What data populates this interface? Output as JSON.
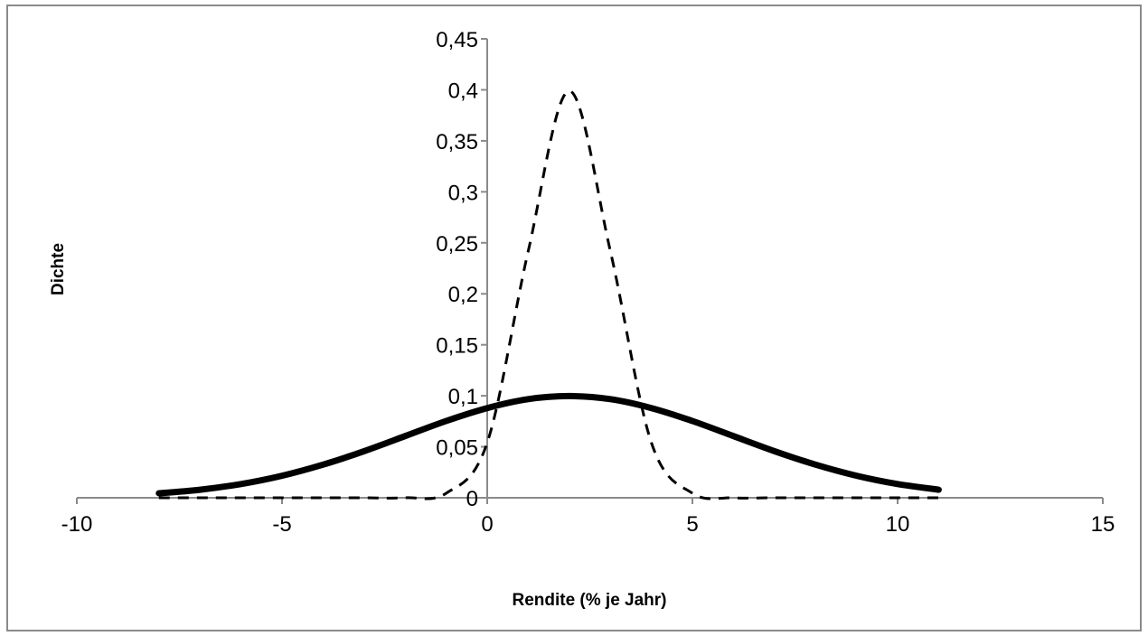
{
  "chart_data": {
    "type": "line",
    "title": "",
    "xlabel": "Rendite (%  je Jahr)",
    "ylabel": "Dichte",
    "xlim": [
      -10,
      15
    ],
    "ylim": [
      0,
      0.45
    ],
    "x_ticks": [
      -10,
      -5,
      0,
      5,
      10,
      15
    ],
    "x_tick_labels": [
      "-10",
      "-5",
      "0",
      "5",
      "10",
      "15"
    ],
    "y_ticks": [
      0,
      0.05,
      0.1,
      0.15,
      0.2,
      0.25,
      0.3,
      0.35,
      0.4,
      0.45
    ],
    "y_tick_labels": [
      "0",
      "0,05",
      "0,1",
      "0,15",
      "0,2",
      "0,25",
      "0,3",
      "0,35",
      "0,4",
      "0,45"
    ],
    "grid": false,
    "legend": "none",
    "series": [
      {
        "style": "solid",
        "color": "#000000",
        "x": [
          -8,
          -7,
          -6,
          -5,
          -4,
          -3,
          -2,
          -1,
          0,
          1,
          2,
          3,
          4,
          5,
          6,
          7,
          8,
          9,
          10,
          11
        ],
        "y": [
          0.0044,
          0.0079,
          0.0135,
          0.0216,
          0.0325,
          0.0457,
          0.0605,
          0.0753,
          0.088,
          0.0967,
          0.0997,
          0.0967,
          0.088,
          0.0753,
          0.0605,
          0.0457,
          0.0325,
          0.0216,
          0.0135,
          0.0079
        ]
      },
      {
        "style": "dashed",
        "color": "#000000",
        "x": [
          -8,
          -7,
          -6,
          -5,
          -4,
          -3,
          -2,
          -1,
          0,
          1,
          2,
          3,
          4,
          5,
          6,
          7,
          8,
          9,
          10,
          11
        ],
        "y": [
          0,
          0,
          0,
          0,
          0,
          0,
          0,
          0.0044,
          0.054,
          0.242,
          0.3989,
          0.242,
          0.054,
          0.0044,
          0,
          0,
          0,
          0,
          0,
          0
        ]
      }
    ]
  }
}
